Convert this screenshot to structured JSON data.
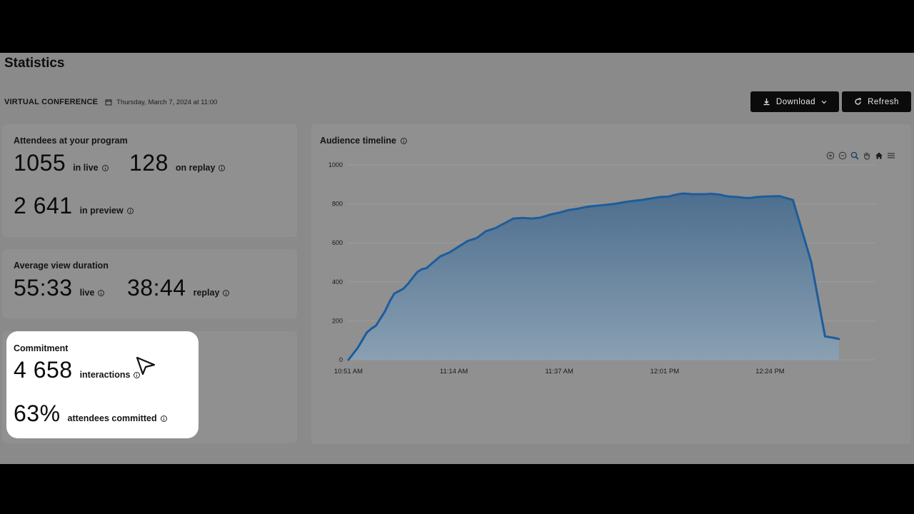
{
  "page": {
    "title": "Statistics"
  },
  "event": {
    "name": "VIRTUAL CONFERENCE",
    "date": "Thursday, March 7, 2024 at 11:00"
  },
  "actions": {
    "download_label": "Download",
    "refresh_label": "Refresh"
  },
  "attendees": {
    "label": "Attendees at your program",
    "live_value": "1055",
    "live_label": "in live",
    "replay_value": "128",
    "replay_label": "on replay",
    "preview_value": "2 641",
    "preview_label": "in preview"
  },
  "duration": {
    "label": "Average view duration",
    "live_value": "55:33",
    "live_label": "live",
    "replay_value": "38:44",
    "replay_label": "replay"
  },
  "commitment": {
    "label": "Commitment",
    "interactions_value": "4 658",
    "interactions_label": "interactions",
    "percent_value": "63%",
    "percent_label": "attendees committed"
  },
  "icons": {
    "info": "info-circle-icon",
    "calendar": "calendar-icon",
    "download": "download-icon",
    "chevron": "chevron-down-icon",
    "refresh": "refresh-icon",
    "cursor": "pointer-cursor-icon",
    "toolbar": [
      "zoom-in-icon",
      "zoom-out-icon",
      "zoom-selection-icon",
      "pan-hand-icon",
      "home-reset-icon",
      "menu-icon"
    ]
  },
  "colors": {
    "line": "#1c5d9c",
    "area_top": "#4d6e8e",
    "area_bottom": "#8aa0b3",
    "highlight": "#ffffff",
    "button_bg": "#0b0b0b"
  },
  "chart_data": {
    "type": "area",
    "title": "Audience timeline",
    "xlabel": "",
    "ylabel": "",
    "ylim": [
      0,
      1000
    ],
    "y_ticks": [
      0,
      200,
      400,
      600,
      800,
      1000
    ],
    "x_ticks": [
      "10:51 AM",
      "11:14 AM",
      "11:37 AM",
      "12:01 PM",
      "12:24 PM"
    ],
    "grid": true,
    "x_unit": "minutes after 10:51 AM",
    "series": [
      {
        "name": "",
        "x": [
          0,
          2,
          4,
          5,
          6,
          8,
          9,
          10,
          12,
          13,
          14,
          15,
          16,
          17,
          18,
          20,
          22,
          24,
          26,
          28,
          30,
          32,
          34,
          36,
          38,
          40,
          42,
          44,
          46,
          48,
          50,
          52,
          54,
          56,
          58,
          60,
          62,
          64,
          66,
          68,
          70,
          71,
          72,
          73,
          74,
          75,
          76,
          78,
          79,
          80,
          81,
          82,
          83,
          85,
          86,
          87,
          88,
          89,
          91,
          94,
          97,
          101,
          104,
          106,
          107
        ],
        "y": [
          0,
          60,
          140,
          160,
          175,
          250,
          300,
          340,
          365,
          390,
          420,
          450,
          465,
          470,
          490,
          530,
          550,
          580,
          610,
          625,
          660,
          675,
          700,
          725,
          728,
          725,
          730,
          745,
          755,
          768,
          775,
          785,
          790,
          795,
          800,
          808,
          815,
          820,
          828,
          835,
          838,
          845,
          850,
          853,
          852,
          850,
          850,
          850,
          852,
          850,
          848,
          842,
          838,
          835,
          832,
          830,
          831,
          835,
          838,
          840,
          820,
          500,
          120,
          112,
          107
        ]
      }
    ]
  }
}
